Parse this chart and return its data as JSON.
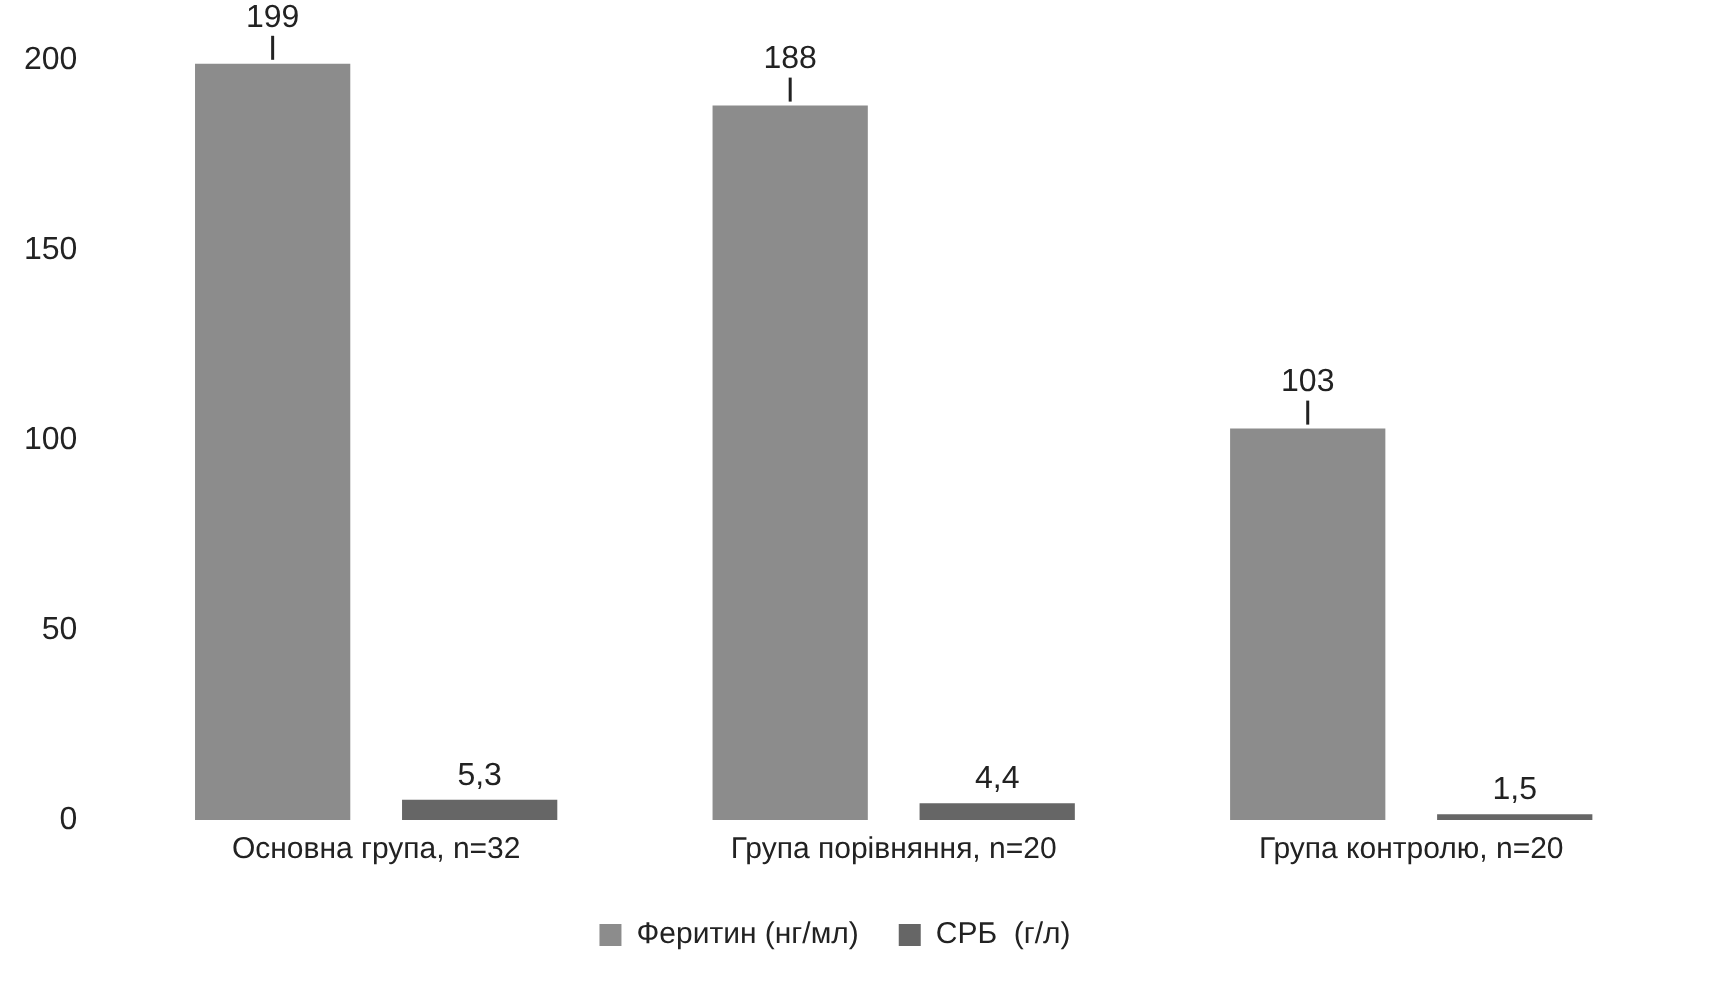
{
  "chart_data": {
    "type": "bar",
    "categories": [
      "Основна група, n=32",
      "Група порівняння, n=20",
      "Група контролю, n=20"
    ],
    "series": [
      {
        "name": "Феритин (нг/мл)",
        "color": "#8c8c8c",
        "values": [
          199,
          188,
          103
        ],
        "value_labels": [
          "199",
          "188",
          "103"
        ]
      },
      {
        "name": "СРБ  (г/л)",
        "color": "#666666",
        "values": [
          5.3,
          4.4,
          1.5
        ],
        "value_labels": [
          "5,3",
          "4,4",
          "1,5"
        ]
      }
    ],
    "ylim": [
      0,
      200
    ],
    "yticks": [
      0,
      50,
      100,
      150,
      200
    ],
    "grid": false,
    "legend": "bottom"
  }
}
